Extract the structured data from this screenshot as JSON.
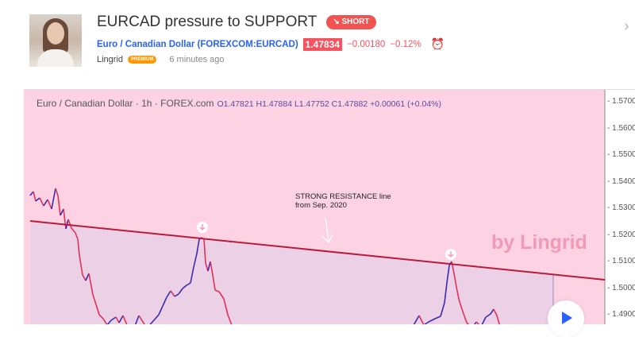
{
  "idea": {
    "title": "EURCAD pressure to SUPPORT",
    "direction_badge": "↘ SHORT",
    "symbol_link": "Euro / Canadian Dollar (FOREXCOM:EURCAD)",
    "price": "1.47834",
    "change": "−0.00180",
    "change_pct": "−0.12%",
    "author": "Lingrid",
    "author_badge": "PREMIUM",
    "time_ago": "6 minutes ago"
  },
  "chart": {
    "symbol": "Euro / Canadian Dollar",
    "interval": "1h",
    "source": "FOREX.com",
    "ohlc": "O1.47821 H1.47884 L1.47752 C1.47882 +0.00061 (+0.04%)",
    "annotation_line1": "STRONG RESISTANCE line",
    "annotation_line2": "from Sep. 2020",
    "watermark": "by Lingrid",
    "price_axis": [
      "1.5700",
      "1.5600",
      "1.5500",
      "1.5400",
      "1.5300",
      "1.5200",
      "1.5100",
      "1.5000",
      "1.4900"
    ],
    "colors": {
      "background": "#fdd3e3",
      "below_line": "#ecd0e6",
      "resistance": "#b71c3c",
      "up": "#3a2bb0",
      "down": "#e0305a"
    }
  }
}
